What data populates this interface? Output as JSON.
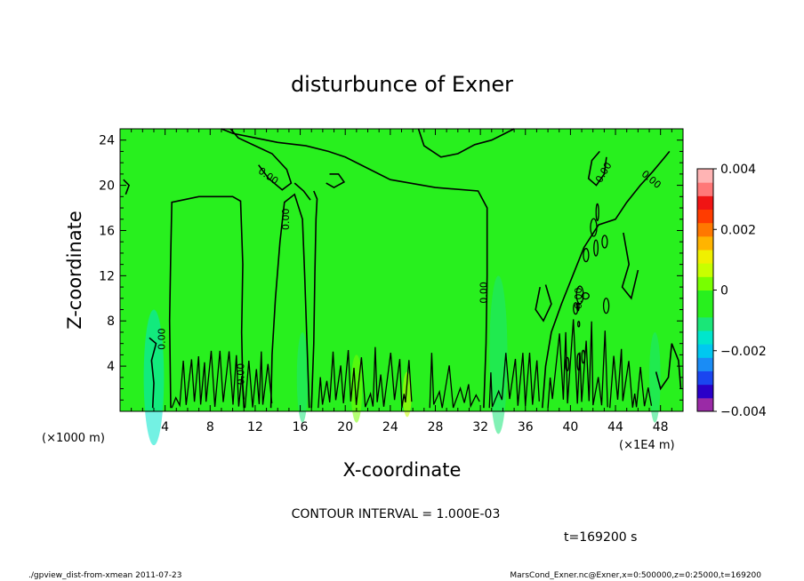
{
  "chart_data": {
    "type": "heatmap",
    "title": "disturbunce of Exner",
    "xlabel": "X-coordinate",
    "ylabel": "Z-coordinate",
    "x_ticks": [
      4,
      8,
      12,
      16,
      20,
      24,
      28,
      32,
      36,
      40,
      44,
      48
    ],
    "y_ticks": [
      4,
      8,
      12,
      16,
      20,
      24
    ],
    "xlim": [
      0,
      50
    ],
    "ylim": [
      0,
      25
    ],
    "x_unit_left": "(×1000 m)",
    "x_unit_right": "(×1E4 m)",
    "colorbar": {
      "ticks": [
        "0.004",
        "0.002",
        "0",
        "−0.002",
        "−0.004"
      ],
      "range": [
        -0.004,
        0.004
      ],
      "colors": [
        "#9a2aa6",
        "#2a00c8",
        "#1a46f0",
        "#1a8cf5",
        "#00c8f0",
        "#00e6cc",
        "#1ae678",
        "#28f01e",
        "#28f01e",
        "#78ff00",
        "#c8ff00",
        "#f0f000",
        "#ffb400",
        "#ff7800",
        "#ff3c00",
        "#f01414",
        "#ff7878",
        "#ffb4b4"
      ]
    },
    "contour_labels": [
      "0.00",
      "0.00",
      "0.00",
      "0.00",
      "0.00",
      "0.00",
      "0.00",
      "0.00"
    ],
    "contour_interval": "CONTOUR INTERVAL = 1.000E-03",
    "time": "t=169200 s",
    "footer_left": "./gpview_dist-from-xmean  2011-07-23",
    "footer_right": "MarsCond_Exner.nc@Exner,x=0:500000,z=0:25000,t=169200"
  },
  "colors": {
    "field": "#28f01e",
    "contour": "#000000"
  }
}
